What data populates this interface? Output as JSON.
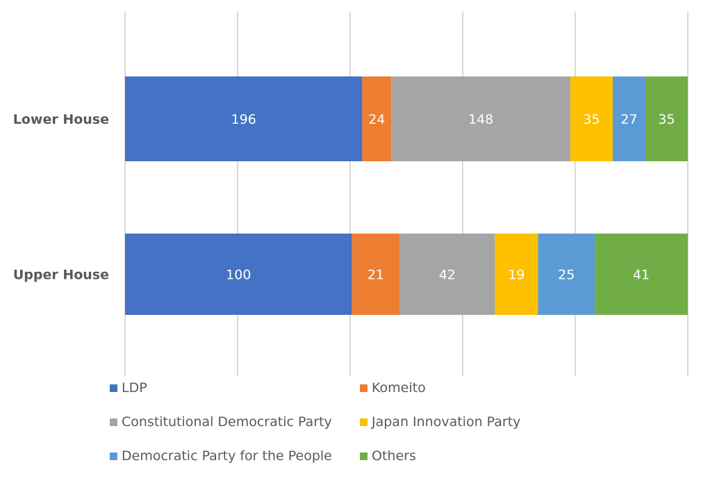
{
  "chart_data": {
    "type": "bar",
    "orientation": "horizontal",
    "stacking": "percent",
    "title": "",
    "xlabel": "",
    "ylabel": "",
    "xlim": [
      0,
      100
    ],
    "x_ticks": [
      0,
      20,
      40,
      60,
      80,
      100
    ],
    "x_tick_labels_visible": false,
    "grid": true,
    "categories": [
      "Lower House",
      "Upper House"
    ],
    "series": [
      {
        "name": "LDP",
        "color": "#4472C4",
        "values": [
          196,
          100
        ]
      },
      {
        "name": "Komeito",
        "color": "#ED7D31",
        "values": [
          24,
          21
        ]
      },
      {
        "name": "Constitutional Democratic Party",
        "color": "#A5A5A5",
        "values": [
          148,
          42
        ]
      },
      {
        "name": "Japan Innovation Party",
        "color": "#FFC000",
        "values": [
          35,
          19
        ]
      },
      {
        "name": "Democratic Party for the People",
        "color": "#5B9BD5",
        "values": [
          27,
          25
        ]
      },
      {
        "name": "Others",
        "color": "#70AD47",
        "values": [
          35,
          41
        ]
      }
    ],
    "data_labels": true,
    "legend_position": "bottom"
  }
}
